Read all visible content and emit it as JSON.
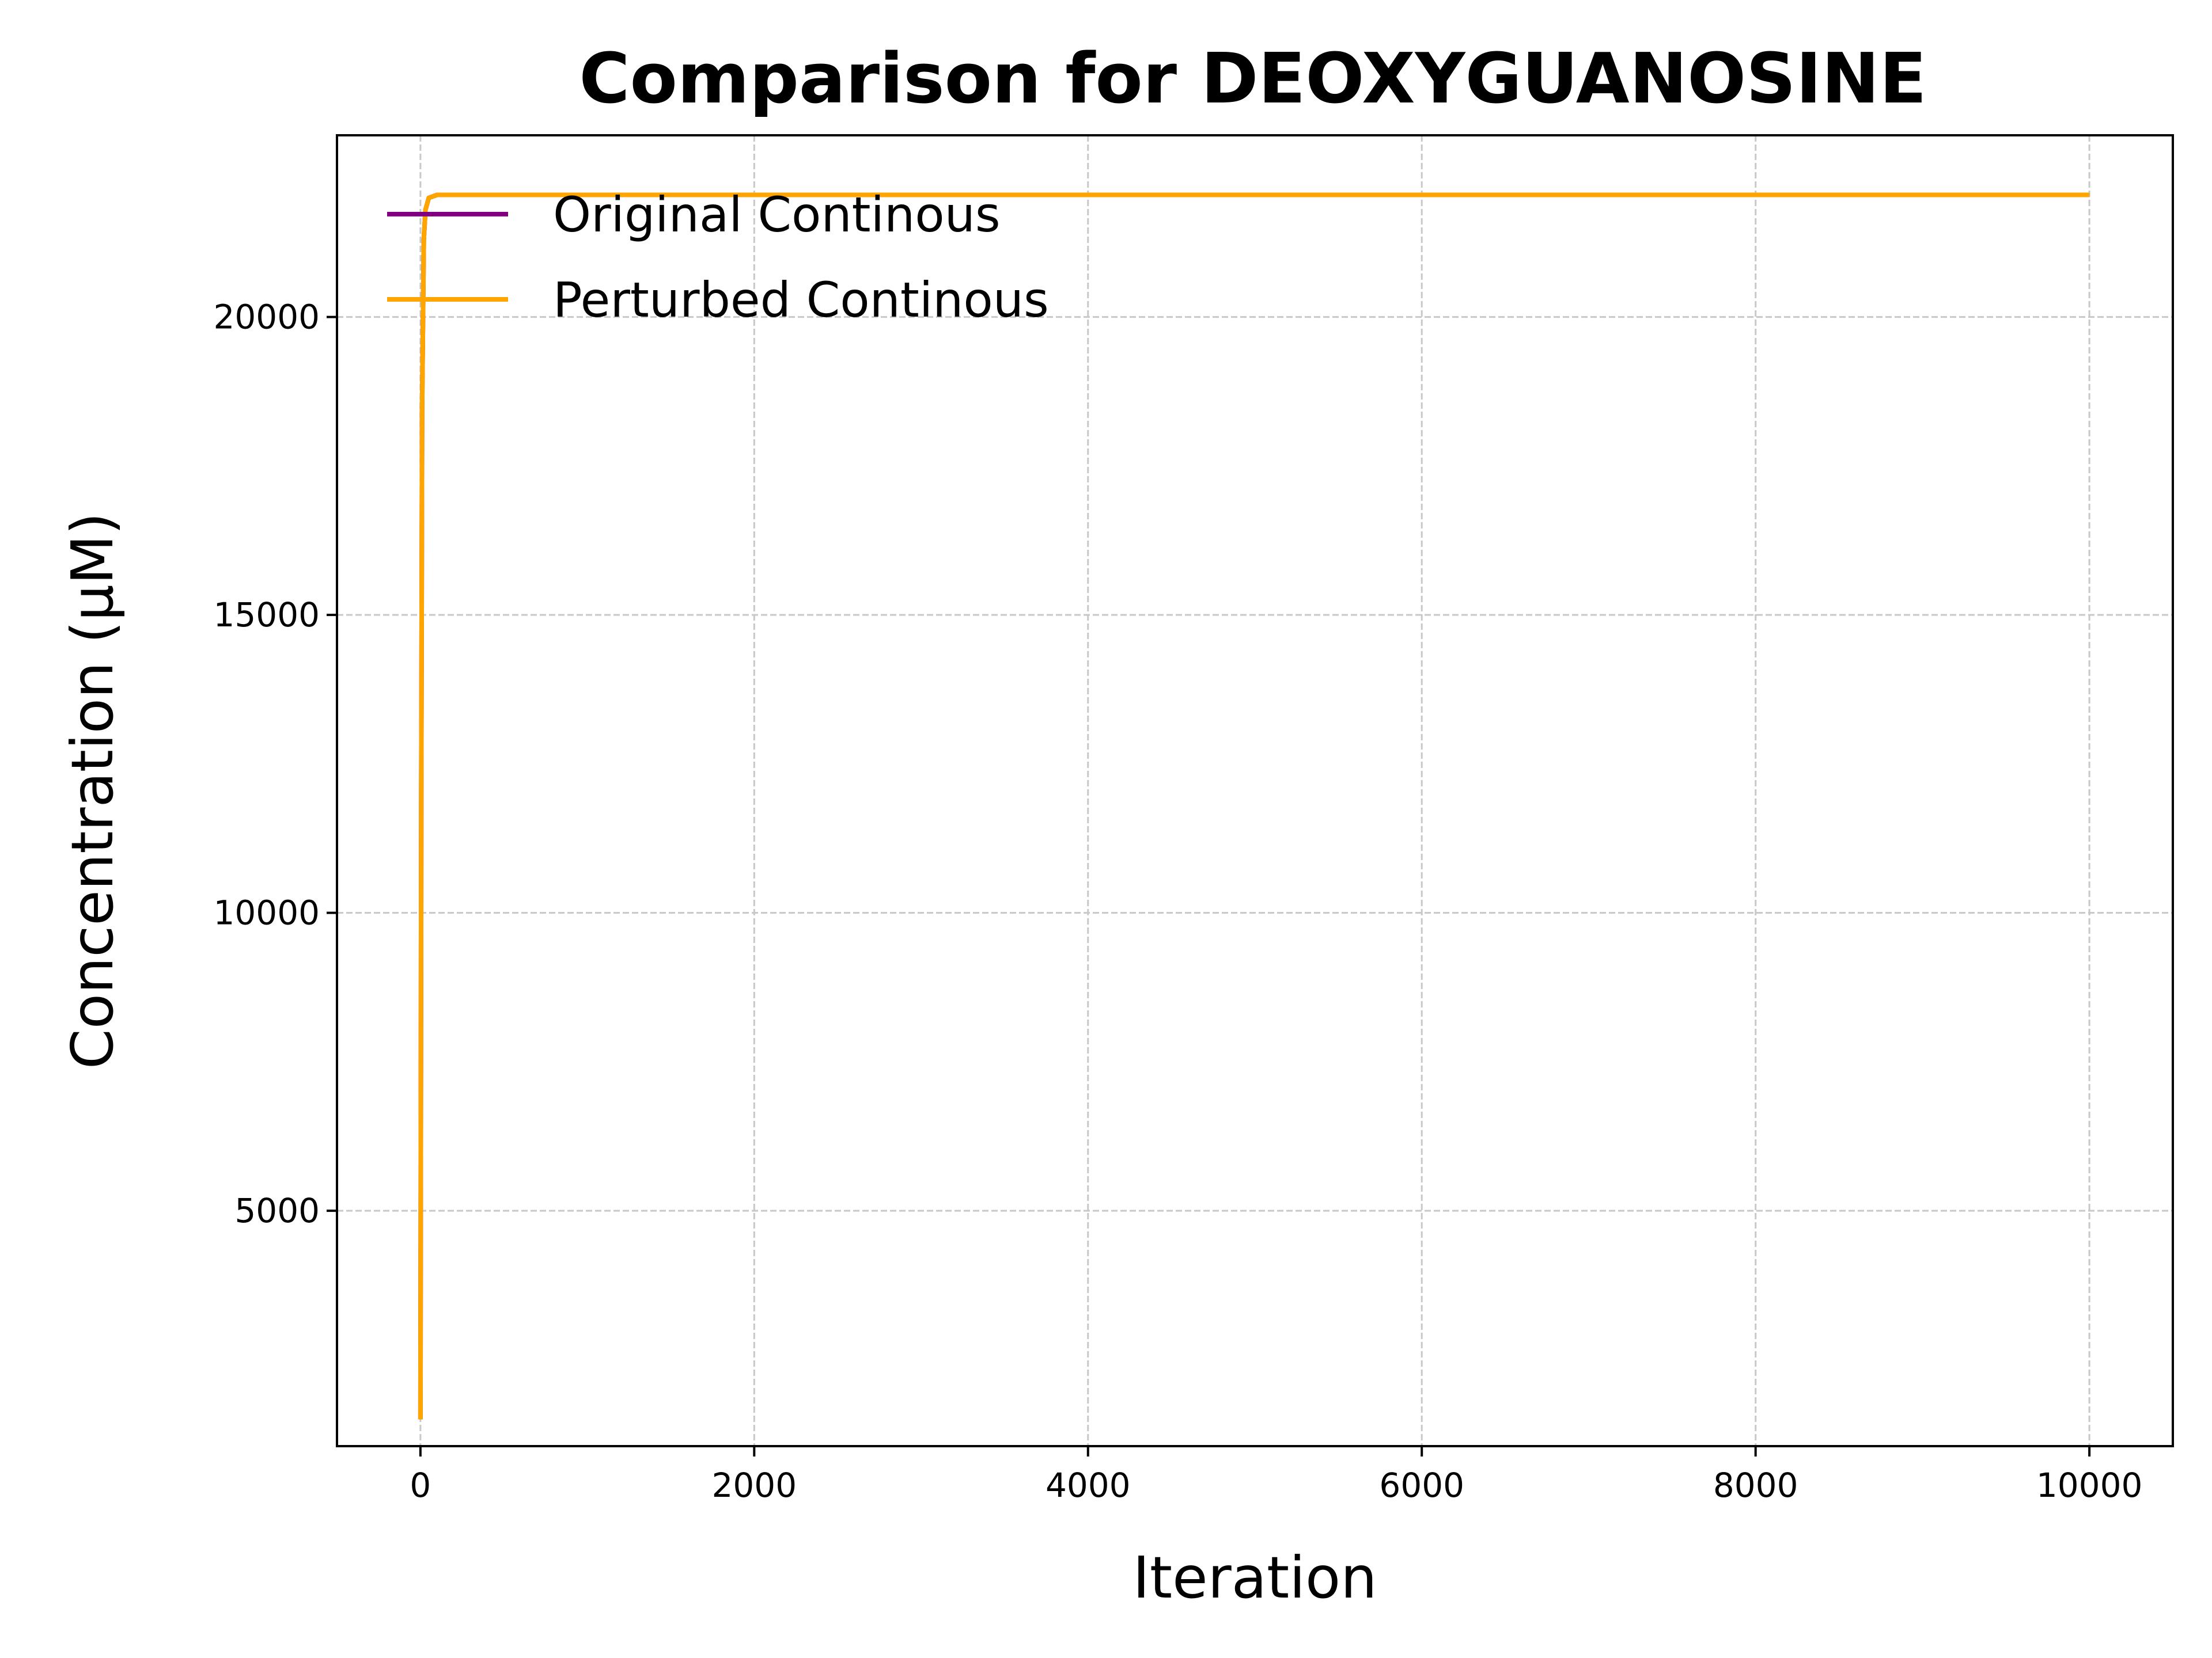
{
  "chart_data": {
    "type": "line",
    "title": "Comparison for DEOXYGUANOSINE",
    "xlabel": "Iteration",
    "ylabel": "Concentration (μM)",
    "xlim": [
      -500,
      10500
    ],
    "ylim": [
      1050,
      23050
    ],
    "xticks": [
      0,
      2000,
      4000,
      6000,
      8000,
      10000
    ],
    "yticks": [
      5000,
      10000,
      15000,
      20000
    ],
    "xtick_labels": [
      "0",
      "2000",
      "4000",
      "6000",
      "8000",
      "10000"
    ],
    "ytick_labels": [
      "5000",
      "10000",
      "15000",
      "20000"
    ],
    "grid": true,
    "legend_position": "upper-left",
    "series": [
      {
        "name": "Original Continous",
        "color": "#800080",
        "x": [
          0,
          5,
          10,
          20,
          30,
          50,
          100,
          500,
          1000,
          5000,
          10000
        ],
        "y": [
          1500,
          12000,
          18500,
          21300,
          21800,
          22000,
          22050,
          22050,
          22050,
          22050,
          22050
        ]
      },
      {
        "name": "Perturbed Continous",
        "color": "#FFA500",
        "x": [
          0,
          5,
          10,
          20,
          30,
          50,
          100,
          500,
          1000,
          5000,
          10000
        ],
        "y": [
          1500,
          12000,
          18500,
          21300,
          21800,
          22000,
          22050,
          22050,
          22050,
          22050,
          22050
        ]
      }
    ]
  }
}
